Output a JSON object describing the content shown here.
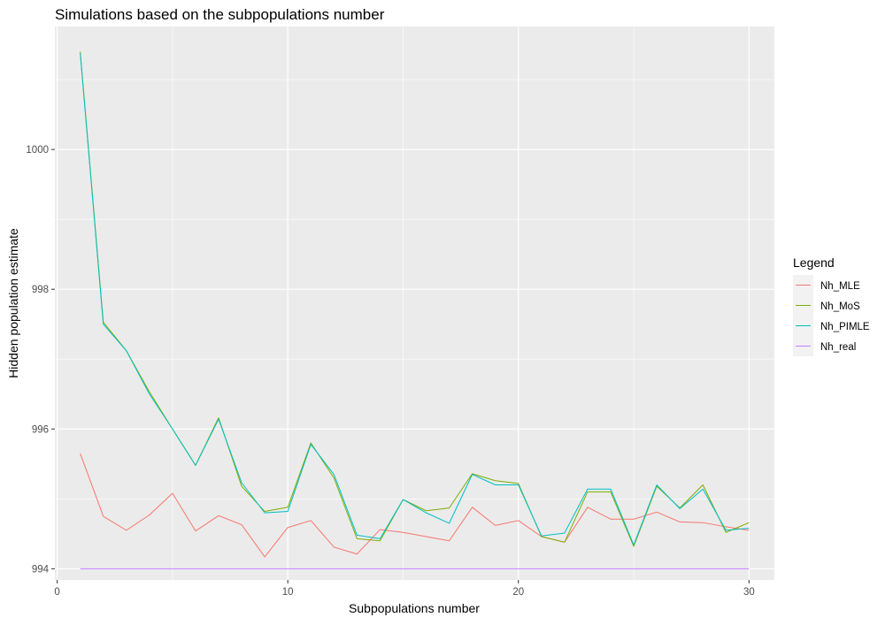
{
  "chart_data": {
    "type": "line",
    "title": "Simulations based on the subpopulations number",
    "xlabel": "Subpopulations number",
    "ylabel": "Hidden population estimate",
    "xlim": [
      -0.1,
      31.1
    ],
    "ylim": [
      993.84,
      1001.76
    ],
    "x_ticks": [
      0,
      10,
      20,
      30
    ],
    "y_ticks": [
      994,
      996,
      998,
      1000
    ],
    "grid": true,
    "legend": {
      "title": "Legend",
      "position": "right"
    },
    "x": [
      1,
      2,
      3,
      4,
      5,
      6,
      7,
      8,
      9,
      10,
      11,
      12,
      13,
      14,
      15,
      16,
      17,
      18,
      19,
      20,
      21,
      22,
      23,
      24,
      25,
      26,
      27,
      28,
      29,
      30
    ],
    "series": [
      {
        "name": "Nh_MLE",
        "color": "#F8766D",
        "values": [
          995.65,
          994.75,
          994.55,
          994.77,
          995.08,
          994.54,
          994.76,
          994.63,
          994.17,
          994.59,
          994.69,
          994.31,
          994.21,
          994.56,
          994.52,
          994.46,
          994.4,
          994.88,
          994.62,
          994.69,
          994.46,
          994.38,
          994.88,
          994.71,
          994.71,
          994.81,
          994.67,
          994.66,
          994.6,
          994.55
        ]
      },
      {
        "name": "Nh_MoS",
        "color": "#7CAE00",
        "values": [
          1001.4,
          997.53,
          997.12,
          996.53,
          996.0,
          995.48,
          996.16,
          995.18,
          994.82,
          994.88,
          995.8,
          995.3,
          994.43,
          994.4,
          994.99,
          994.83,
          994.87,
          995.36,
          995.26,
          995.22,
          994.46,
          994.38,
          995.1,
          995.1,
          994.32,
          995.18,
          994.87,
          995.2,
          994.52,
          994.66
        ]
      },
      {
        "name": "Nh_PIMLE",
        "color": "#00BFC4",
        "values": [
          1001.38,
          997.5,
          997.12,
          996.5,
          996.0,
          995.48,
          996.14,
          995.23,
          994.8,
          994.82,
          995.78,
          995.35,
          994.48,
          994.43,
          994.99,
          994.8,
          994.65,
          995.35,
          995.2,
          995.2,
          994.47,
          994.51,
          995.14,
          995.14,
          994.34,
          995.2,
          994.86,
          995.14,
          994.55,
          994.58
        ]
      },
      {
        "name": "Nh_real",
        "color": "#C77CFF",
        "values": [
          994,
          994,
          994,
          994,
          994,
          994,
          994,
          994,
          994,
          994,
          994,
          994,
          994,
          994,
          994,
          994,
          994,
          994,
          994,
          994,
          994,
          994,
          994,
          994,
          994,
          994,
          994,
          994,
          994,
          994
        ]
      }
    ]
  }
}
